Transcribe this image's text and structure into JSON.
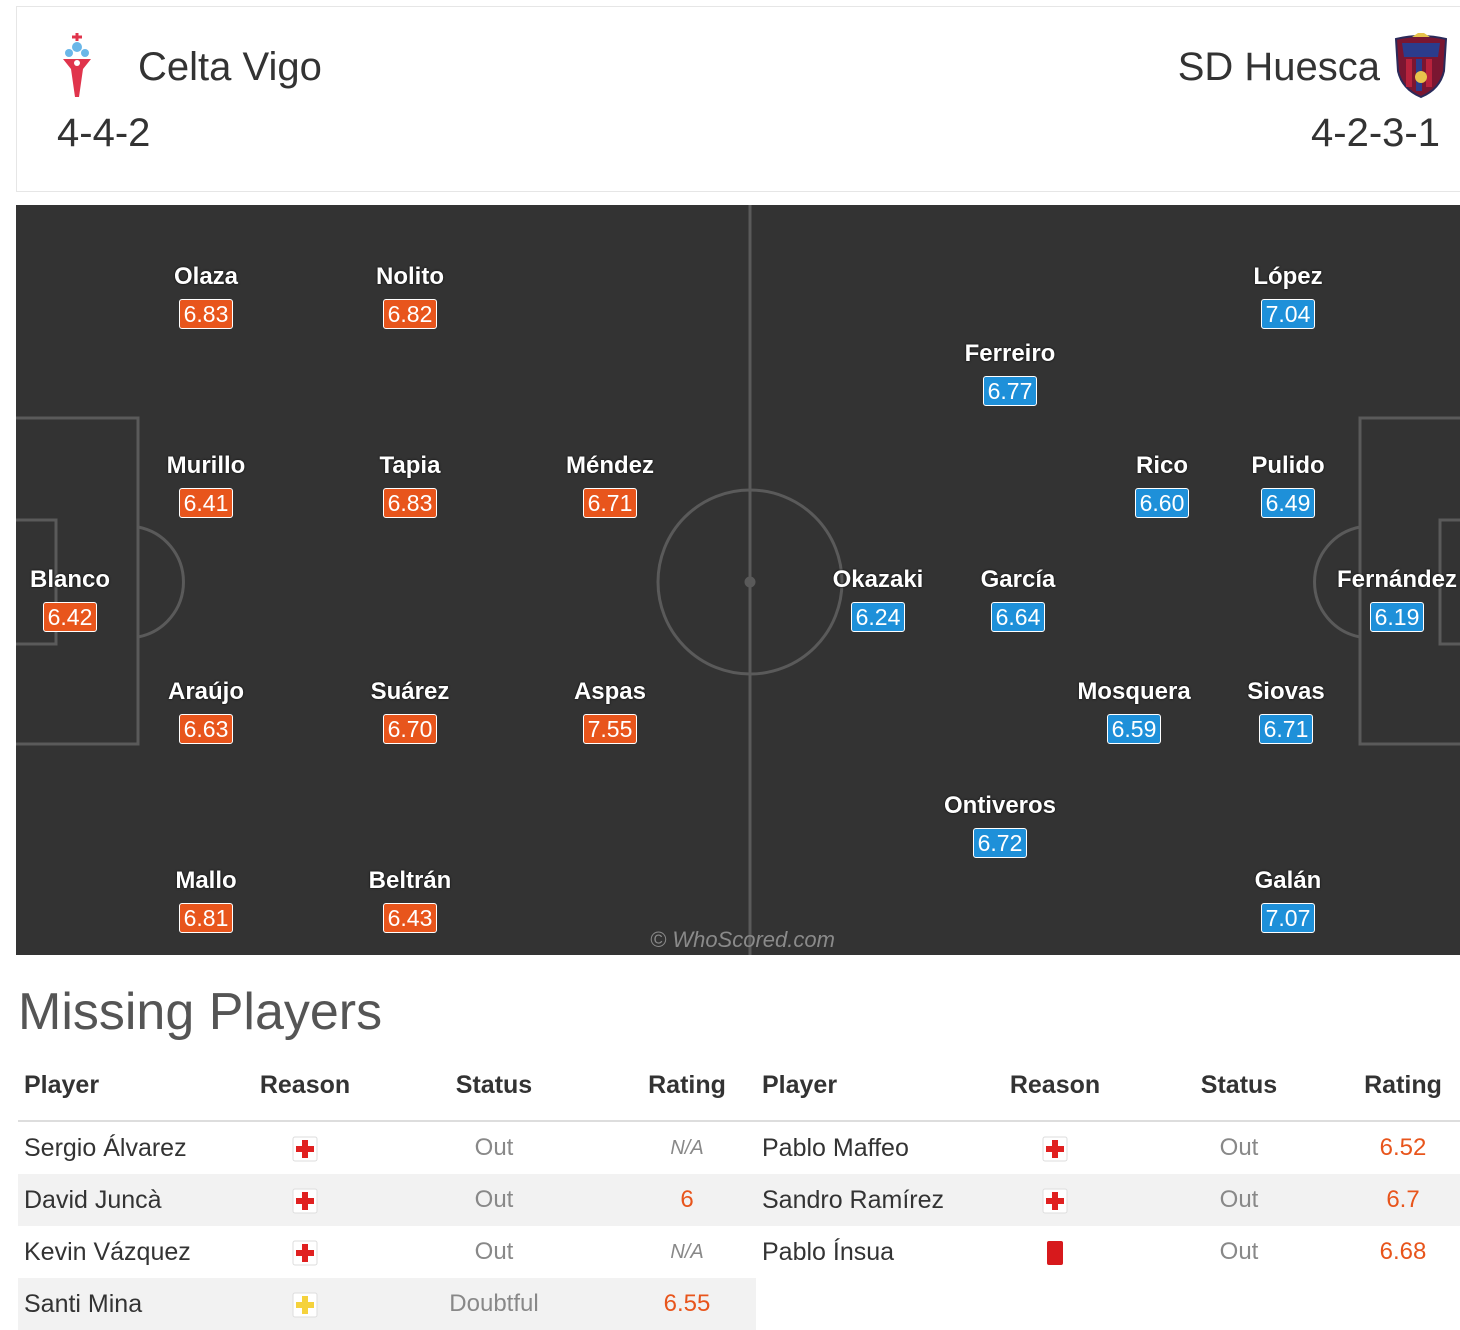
{
  "header": {
    "home": {
      "name": "Celta Vigo",
      "formation": "4-4-2"
    },
    "away": {
      "name": "SD Huesca",
      "formation": "4-2-3-1"
    }
  },
  "pitch": {
    "watermark": "© WhoScored.com",
    "home_players": [
      {
        "name": "Olaza",
        "rating": "6.83"
      },
      {
        "name": "Nolito",
        "rating": "6.82"
      },
      {
        "name": "Murillo",
        "rating": "6.41"
      },
      {
        "name": "Tapia",
        "rating": "6.83"
      },
      {
        "name": "Méndez",
        "rating": "6.71"
      },
      {
        "name": "Blanco",
        "rating": "6.42"
      },
      {
        "name": "Araújo",
        "rating": "6.63"
      },
      {
        "name": "Suárez",
        "rating": "6.70"
      },
      {
        "name": "Aspas",
        "rating": "7.55"
      },
      {
        "name": "Mallo",
        "rating": "6.81"
      },
      {
        "name": "Beltrán",
        "rating": "6.43"
      }
    ],
    "away_players": [
      {
        "name": "López",
        "rating": "7.04"
      },
      {
        "name": "Ferreiro",
        "rating": "6.77"
      },
      {
        "name": "Rico",
        "rating": "6.60"
      },
      {
        "name": "Pulido",
        "rating": "6.49"
      },
      {
        "name": "Okazaki",
        "rating": "6.24"
      },
      {
        "name": "García",
        "rating": "6.64"
      },
      {
        "name": "Fernández",
        "rating": "6.19"
      },
      {
        "name": "Mosquera",
        "rating": "6.59"
      },
      {
        "name": "Siovas",
        "rating": "6.71"
      },
      {
        "name": "Ontiveros",
        "rating": "6.72"
      },
      {
        "name": "Galán",
        "rating": "7.07"
      }
    ]
  },
  "missing": {
    "title": "Missing Players",
    "columns": [
      "Player",
      "Reason",
      "Status",
      "Rating"
    ],
    "home": [
      {
        "player": "Sergio Álvarez",
        "reason_icon": "injury-icon",
        "status": "Out",
        "rating": "N/A"
      },
      {
        "player": "David Juncà",
        "reason_icon": "injury-icon",
        "status": "Out",
        "rating": "6"
      },
      {
        "player": "Kevin Vázquez",
        "reason_icon": "injury-icon",
        "status": "Out",
        "rating": "N/A"
      },
      {
        "player": "Santi Mina",
        "reason_icon": "doubtful-injury-icon",
        "status": "Doubtful",
        "rating": "6.55"
      }
    ],
    "away": [
      {
        "player": "Pablo Maffeo",
        "reason_icon": "injury-icon",
        "status": "Out",
        "rating": "6.52"
      },
      {
        "player": "Sandro Ramírez",
        "reason_icon": "injury-icon",
        "status": "Out",
        "rating": "6.7"
      },
      {
        "player": "Pablo Ínsua",
        "reason_icon": "red-card-icon",
        "status": "Out",
        "rating": "6.68"
      }
    ]
  },
  "colors": {
    "home_rating": "#e8551c",
    "away_rating": "#1e90d9",
    "pitch": "#333333",
    "injury": "#e02020",
    "doubtful": "#f5d23c"
  }
}
